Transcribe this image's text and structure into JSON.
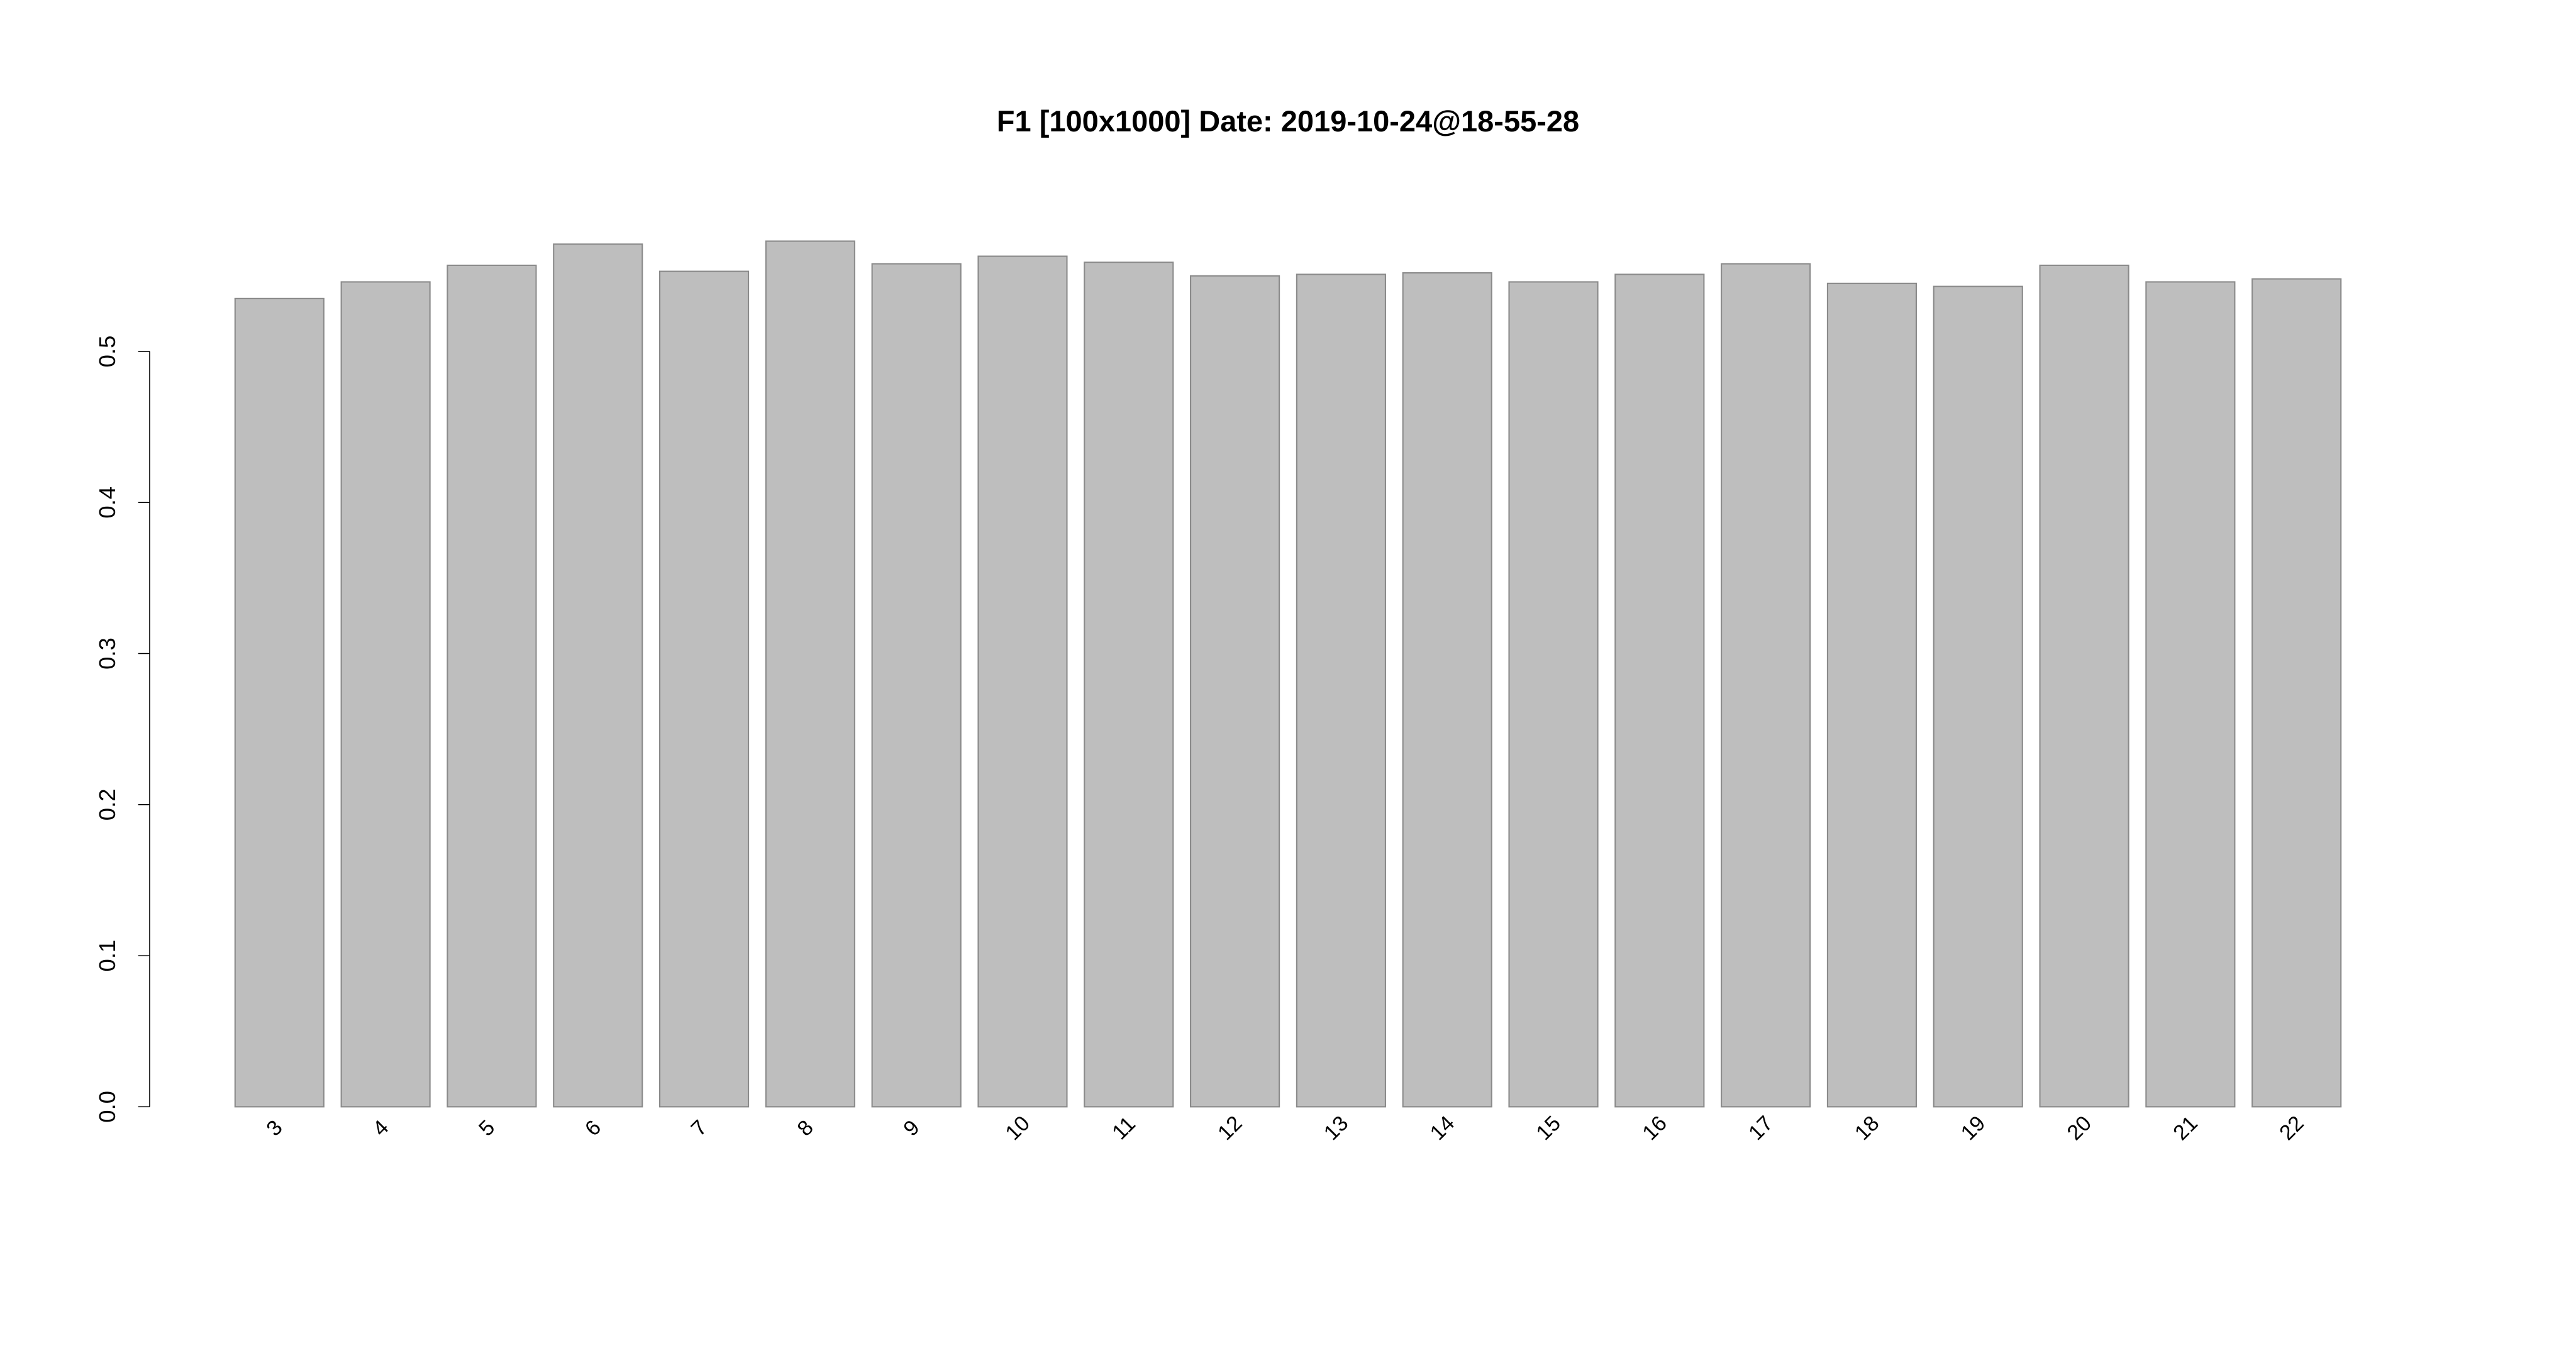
{
  "chart_data": {
    "type": "bar",
    "title": "F1 [100x1000] Date: 2019-10-24@18-55-28",
    "categories": [
      "3",
      "4",
      "5",
      "6",
      "7",
      "8",
      "9",
      "10",
      "11",
      "12",
      "13",
      "14",
      "15",
      "16",
      "17",
      "18",
      "19",
      "20",
      "21",
      "22"
    ],
    "values": [
      0.535,
      0.546,
      0.557,
      0.571,
      0.553,
      0.573,
      0.558,
      0.563,
      0.559,
      0.55,
      0.551,
      0.552,
      0.546,
      0.551,
      0.558,
      0.545,
      0.543,
      0.557,
      0.546,
      0.548
    ],
    "color": "#bebebe",
    "ylim": [
      0,
      0.6
    ],
    "yticks": [
      {
        "value": 0,
        "label": "0.0"
      },
      0.1,
      0.2,
      0.3,
      0.4,
      0.5
    ]
  }
}
